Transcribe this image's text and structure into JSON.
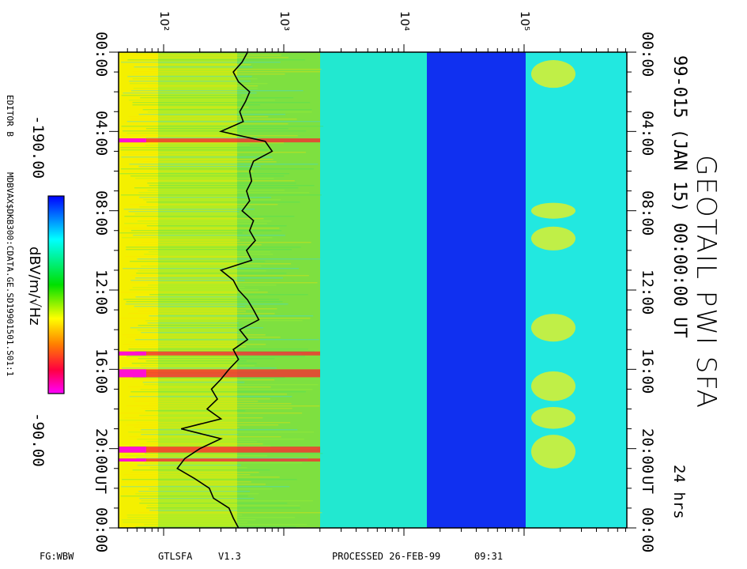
{
  "chart_data": {
    "type": "heatmap",
    "title": "GEOTAIL PWI SFA",
    "subtitle": "99-015 (JAN 15) 00:00:00 UT",
    "duration": "24 hrs",
    "x_axis": {
      "scale": "log",
      "ticks": [
        "10²",
        "10³",
        "10⁴",
        "10⁵"
      ],
      "tick_values": [
        100,
        1000,
        10000,
        100000
      ]
    },
    "y_axis": {
      "ticks": [
        "00:00",
        "04:00",
        "08:00",
        "12:00",
        "16:00",
        "20:00",
        "00:00"
      ],
      "tick_hours": [
        0,
        4,
        8,
        12,
        16,
        20,
        24
      ],
      "unit_label": "UT"
    },
    "colorbar": {
      "label": "dBV/m/√Hz",
      "min_label": "-190.00",
      "max_label": "-90.00",
      "min": -190,
      "max": -90,
      "colors": [
        "#ff00ff",
        "#ff0000",
        "#ffa500",
        "#ffff00",
        "#00e000",
        "#00ffff",
        "#0000ff"
      ]
    },
    "electron_plasma_line": {
      "hours": [
        0.0,
        0.5,
        1.0,
        1.5,
        2.0,
        2.5,
        3.0,
        3.5,
        4.0,
        4.5,
        5.0,
        5.5,
        6.0,
        6.5,
        7.0,
        7.5,
        8.0,
        8.5,
        9.0,
        9.5,
        10.0,
        10.5,
        11.0,
        11.5,
        12.0,
        12.5,
        13.0,
        13.5,
        14.0,
        14.5,
        15.0,
        15.5,
        16.0,
        16.5,
        17.0,
        17.5,
        18.0,
        18.5,
        19.0,
        19.5,
        20.0,
        20.5,
        21.0,
        21.5,
        22.0,
        22.5,
        23.0,
        23.5,
        24.0
      ],
      "freq_hz": [
        500,
        450,
        380,
        420,
        520,
        480,
        430,
        460,
        300,
        700,
        800,
        560,
        520,
        540,
        490,
        520,
        450,
        560,
        520,
        580,
        490,
        540,
        300,
        380,
        420,
        500,
        560,
        620,
        430,
        500,
        380,
        420,
        350,
        300,
        250,
        280,
        230,
        300,
        140,
        300,
        200,
        150,
        130,
        180,
        240,
        260,
        350,
        380,
        420
      ]
    }
  },
  "side_labels": {
    "editor": "EDITOR B",
    "path": "MDBVAX$DKB300:CDATA.GE.SD19901501.S01:1"
  },
  "footer": {
    "fg": "FG:WBW",
    "program": "GTLSFA",
    "version": "V1.3",
    "processed": "PROCESSED 26-FEB-99",
    "time": "09:31"
  }
}
